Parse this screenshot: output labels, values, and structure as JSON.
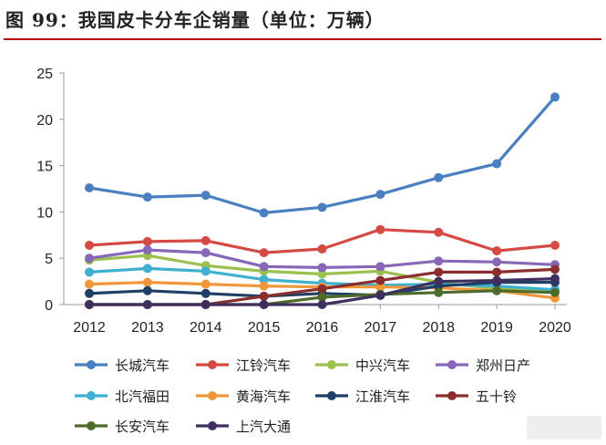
{
  "title": "图 99：我国皮卡分车企销量（单位：万辆）",
  "chart_data": {
    "type": "line",
    "title": "图 99：我国皮卡分车企销量（单位：万辆）",
    "x": [
      "2012",
      "2013",
      "2014",
      "2015",
      "2016",
      "2017",
      "2018",
      "2019",
      "2020"
    ],
    "ylim": [
      0,
      25
    ],
    "yticks": [
      "0",
      "5",
      "10",
      "15",
      "20",
      "25"
    ],
    "grid": false,
    "legend_position": "bottom",
    "series": [
      {
        "name": "长城汽车",
        "color": "#4a7fc1",
        "values": [
          12.6,
          11.6,
          11.8,
          9.9,
          10.5,
          11.9,
          13.7,
          15.2,
          22.4
        ]
      },
      {
        "name": "江铃汽车",
        "color": "#d44a44",
        "values": [
          6.4,
          6.8,
          6.9,
          5.6,
          6.0,
          8.1,
          7.8,
          5.8,
          6.4
        ]
      },
      {
        "name": "中兴汽车",
        "color": "#9ac050",
        "values": [
          4.8,
          5.3,
          4.2,
          3.6,
          3.3,
          3.6,
          2.4,
          1.7,
          1.6
        ]
      },
      {
        "name": "郑州日产",
        "color": "#8867b8",
        "values": [
          5.0,
          5.9,
          5.6,
          4.1,
          4.0,
          4.1,
          4.7,
          4.6,
          4.3
        ]
      },
      {
        "name": "北汽福田",
        "color": "#3fb0cf",
        "values": [
          3.5,
          3.9,
          3.6,
          2.7,
          2.3,
          2.1,
          2.2,
          2.0,
          1.6
        ]
      },
      {
        "name": "黄海汽车",
        "color": "#f0973a",
        "values": [
          2.2,
          2.4,
          2.2,
          2.0,
          1.9,
          1.9,
          1.8,
          1.5,
          0.7
        ]
      },
      {
        "name": "江淮汽车",
        "color": "#1f3f66",
        "values": [
          1.2,
          1.5,
          1.2,
          0.9,
          1.2,
          1.0,
          2.0,
          2.4,
          2.4
        ]
      },
      {
        "name": "五十铃",
        "color": "#8b2e2e",
        "values": [
          0.0,
          0.0,
          0.0,
          0.9,
          1.7,
          2.6,
          3.5,
          3.5,
          3.8
        ]
      },
      {
        "name": "长安汽车",
        "color": "#4f6b2b",
        "values": [
          0.0,
          0.0,
          0.0,
          0.0,
          0.8,
          1.1,
          1.3,
          1.5,
          1.3
        ]
      },
      {
        "name": "上汽大通",
        "color": "#3e2f5e",
        "values": [
          0.0,
          0.0,
          0.0,
          0.0,
          0.0,
          1.0,
          2.5,
          2.6,
          2.8
        ]
      }
    ]
  }
}
